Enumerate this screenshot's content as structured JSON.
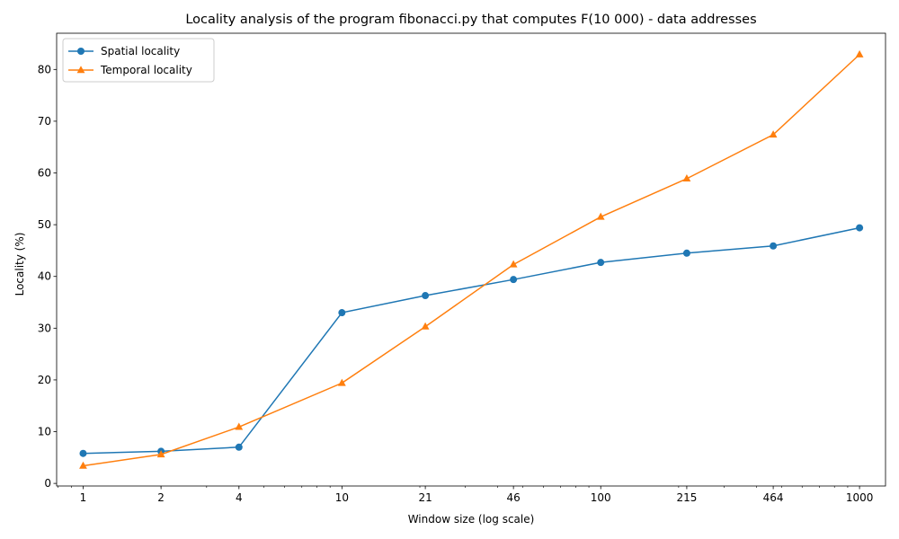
{
  "chart_data": {
    "type": "line",
    "title": "Locality analysis of the program fibonacci.py that computes F(10 000) - data addresses",
    "xlabel": "Window size (log scale)",
    "ylabel": "Locality (%)",
    "x_scale": "log",
    "x": [
      1,
      2,
      4,
      10,
      21,
      46,
      100,
      215,
      464,
      1000
    ],
    "x_tick_labels": [
      "1",
      "2",
      "4",
      "10",
      "21",
      "46",
      "100",
      "215",
      "464",
      "1000"
    ],
    "xlim": [
      0.79,
      1260
    ],
    "ylim": [
      -0.5,
      87
    ],
    "y_ticks": [
      0,
      10,
      20,
      30,
      40,
      50,
      60,
      70,
      80
    ],
    "grid": false,
    "legend_position": "upper-left",
    "series": [
      {
        "name": "Spatial locality",
        "color": "#1f77b4",
        "marker": "circle",
        "values": [
          5.8,
          6.2,
          7.0,
          33.0,
          36.3,
          39.4,
          42.7,
          44.5,
          45.9,
          49.4
        ]
      },
      {
        "name": "Temporal locality",
        "color": "#ff7f0e",
        "marker": "triangle",
        "values": [
          3.4,
          5.6,
          10.9,
          19.4,
          30.3,
          42.3,
          51.5,
          58.9,
          67.4,
          82.9
        ]
      }
    ]
  }
}
